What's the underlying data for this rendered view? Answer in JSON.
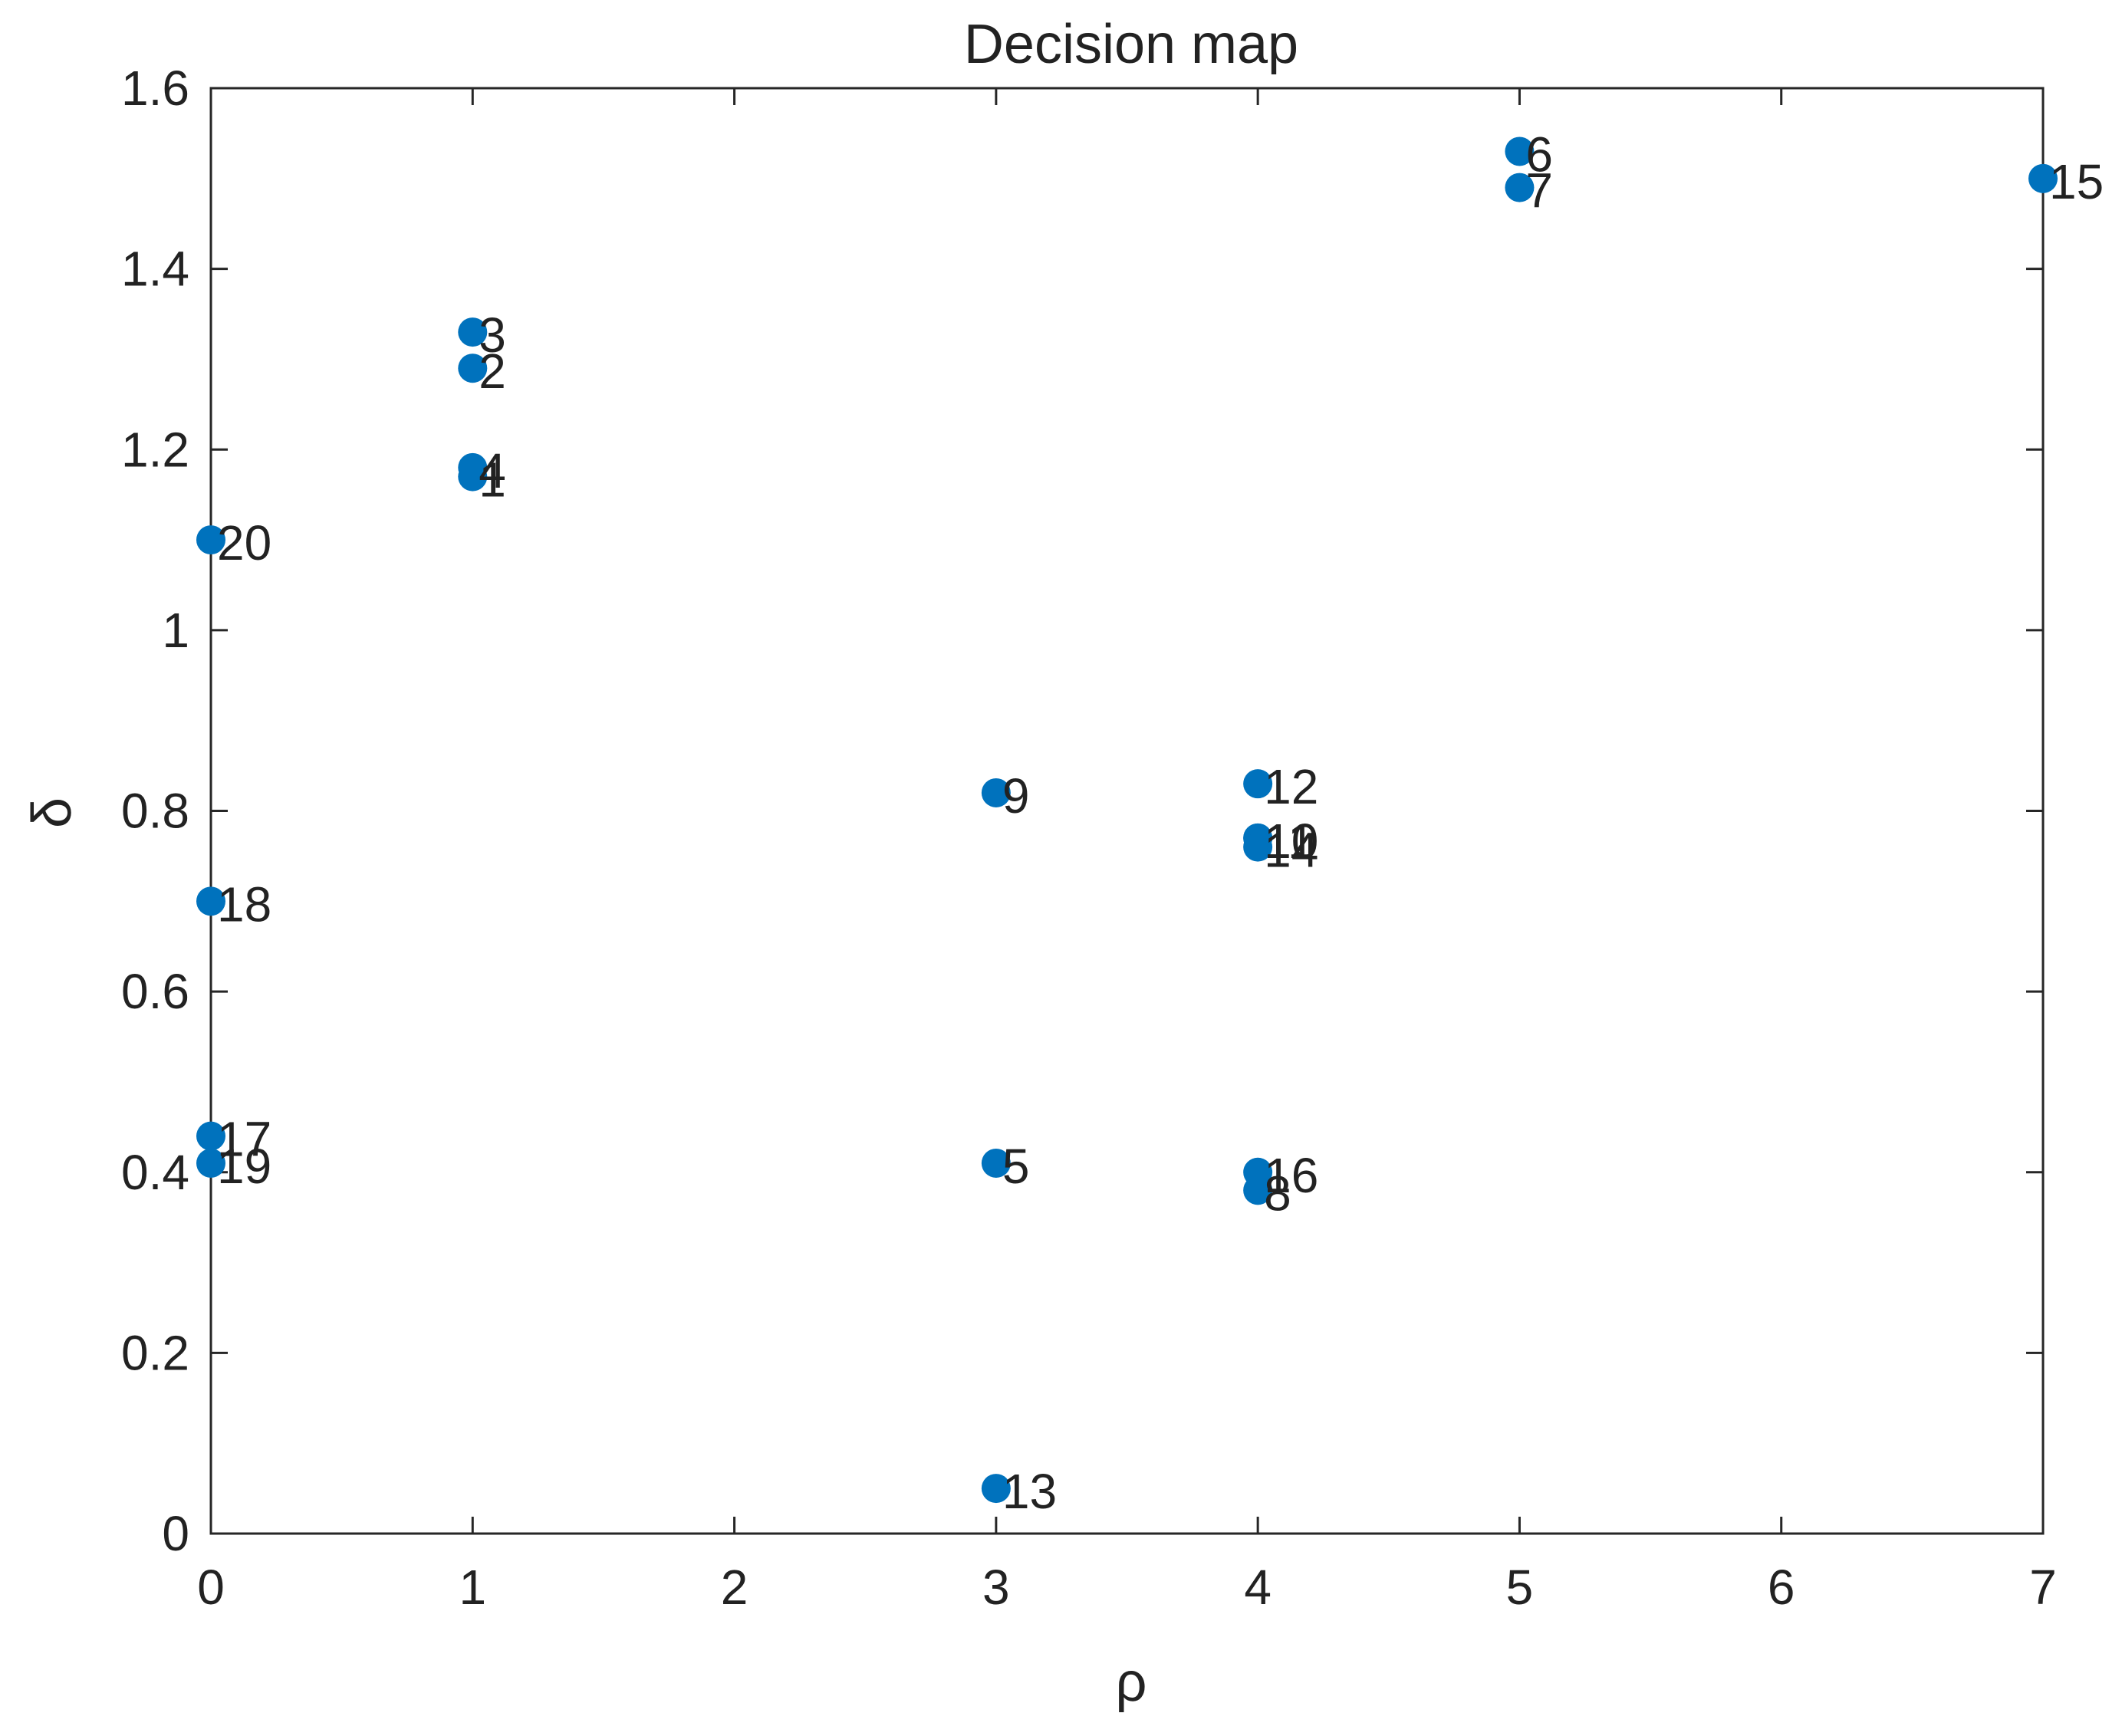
{
  "chart_data": {
    "type": "scatter",
    "title": "Decision map",
    "xlabel": "ρ",
    "ylabel": "δ",
    "xlim": [
      0,
      7
    ],
    "ylim": [
      0,
      1.6
    ],
    "xticks": [
      0,
      1,
      2,
      3,
      4,
      5,
      6,
      7
    ],
    "yticks": [
      0,
      0.2,
      0.4,
      0.6,
      0.8,
      1,
      1.2,
      1.4,
      1.6
    ],
    "xtick_labels": [
      "0",
      "1",
      "2",
      "3",
      "4",
      "5",
      "6",
      "7"
    ],
    "ytick_labels": [
      "0",
      "0.2",
      "0.4",
      "0.6",
      "0.8",
      "1",
      "1.2",
      "1.4",
      "1.6"
    ],
    "grid": false,
    "marker_color": "#0072BD",
    "points": [
      {
        "label": "1",
        "x": 1,
        "y": 1.17
      },
      {
        "label": "2",
        "x": 1,
        "y": 1.29
      },
      {
        "label": "3",
        "x": 1,
        "y": 1.33
      },
      {
        "label": "4",
        "x": 1,
        "y": 1.18
      },
      {
        "label": "5",
        "x": 3,
        "y": 0.41
      },
      {
        "label": "6",
        "x": 5,
        "y": 1.53
      },
      {
        "label": "7",
        "x": 5,
        "y": 1.49
      },
      {
        "label": "8",
        "x": 4,
        "y": 0.38
      },
      {
        "label": "9",
        "x": 3,
        "y": 0.82
      },
      {
        "label": "10",
        "x": 4,
        "y": 0.77
      },
      {
        "label": "11",
        "x": 4,
        "y": 0.77
      },
      {
        "label": "12",
        "x": 4,
        "y": 0.83
      },
      {
        "label": "13",
        "x": 3,
        "y": 0.05
      },
      {
        "label": "14",
        "x": 4,
        "y": 0.76
      },
      {
        "label": "15",
        "x": 7,
        "y": 1.5
      },
      {
        "label": "16",
        "x": 4,
        "y": 0.4
      },
      {
        "label": "17",
        "x": 0,
        "y": 0.44
      },
      {
        "label": "18",
        "x": 0,
        "y": 0.7
      },
      {
        "label": "19",
        "x": 0,
        "y": 0.41
      },
      {
        "label": "20",
        "x": 0,
        "y": 1.1
      }
    ]
  }
}
